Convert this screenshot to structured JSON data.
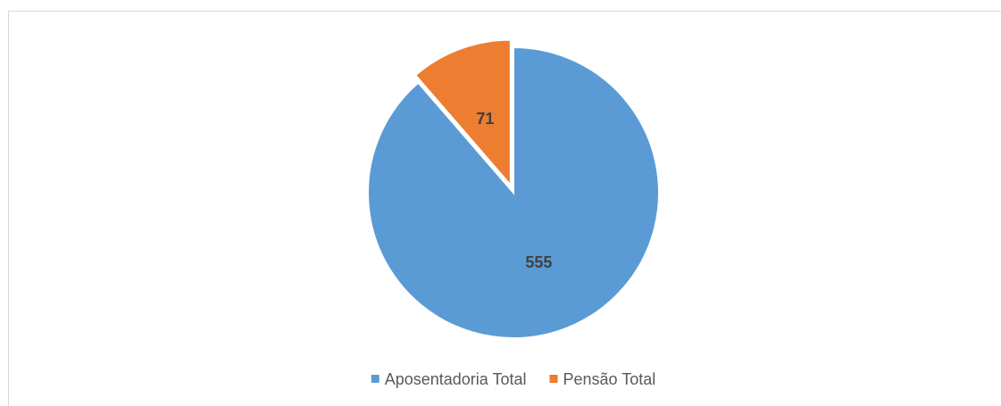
{
  "chart_data": {
    "type": "pie",
    "categories": [
      "Aposentadoria Total",
      "Pensão Total"
    ],
    "values": [
      555,
      71
    ],
    "colors": [
      "#5b9bd5",
      "#ed7d31"
    ],
    "exploded": [
      false,
      true
    ],
    "legend": "bottom"
  }
}
